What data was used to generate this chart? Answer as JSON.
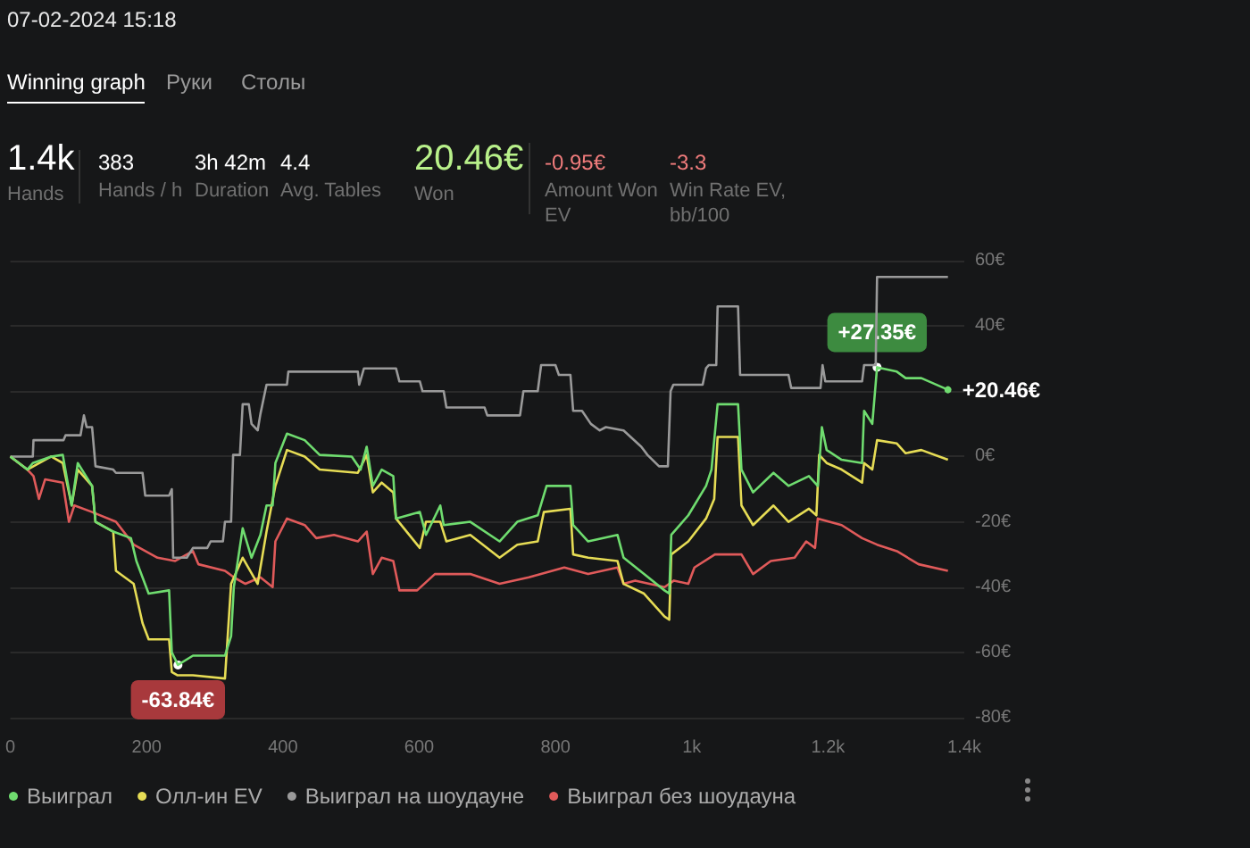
{
  "chart_data": {
    "type": "line",
    "annotations": [
      "07-02-2024 15:18",
      "Winning graph",
      "Руки",
      "Столы",
      "1.4k",
      "Hands",
      "383",
      "Hands / h",
      "3h 42m",
      "Duration",
      "4.4",
      "Avg. Tables",
      "20.46€",
      "Won",
      "-0.95€",
      "Amount Won EV",
      "-3.3",
      "Win Rate EV, bb/100",
      {
        "text": "+27.35€",
        "x": 1272,
        "y": 27.35
      },
      {
        "text": "-63.84€",
        "x": 246,
        "y": -63.84
      }
    ],
    "series": [
      {
        "name": "Выиграл",
        "color": "#6fdc6f",
        "x": [
          0,
          25,
          33,
          60,
          77,
          90,
          99,
          120,
          125,
          151,
          177,
          185,
          203,
          233,
          237,
          246,
          268,
          315,
          324,
          328,
          341,
          354,
          367,
          376,
          385,
          389,
          406,
          432,
          454,
          501,
          514,
          523,
          532,
          545,
          562,
          566,
          601,
          610,
          631,
          636,
          675,
          718,
          744,
          774,
          787,
          822,
          826,
          848,
          891,
          900,
          930,
          960,
          967,
          970,
          995,
          1021,
          1029,
          1038,
          1068,
          1073,
          1090,
          1120,
          1142,
          1172,
          1185,
          1191,
          1198,
          1220,
          1250,
          1253,
          1265,
          1272,
          1301,
          1314,
          1337,
          1376
        ],
        "values": [
          0,
          -4,
          -2,
          0,
          0.5,
          -15,
          -2,
          -9,
          -20,
          -23,
          -25,
          -32,
          -42,
          -41,
          -60,
          -63.84,
          -61,
          -61,
          -55,
          -40,
          -22,
          -31,
          -24,
          -15,
          -15,
          -2,
          7,
          5,
          0.5,
          0,
          -4,
          3,
          -9,
          -4,
          -6,
          -19,
          -17,
          -24,
          -15,
          -21,
          -20,
          -26,
          -20,
          -18,
          -9,
          -9,
          -21,
          -26,
          -24,
          -31,
          -36,
          -41,
          -42,
          -24,
          -18,
          -9,
          -4,
          16,
          16,
          -4,
          -11,
          -5,
          -9,
          -6,
          -9,
          9,
          2,
          -1,
          -2,
          14,
          10,
          27.35,
          26,
          24,
          24,
          20.46
        ],
        "value_labels": [
          null,
          null,
          null,
          null,
          null,
          null,
          null,
          null,
          null,
          null,
          null,
          null,
          null,
          null,
          null,
          null,
          null,
          null,
          null,
          null,
          null,
          null,
          null,
          null,
          null,
          null,
          null,
          null,
          null,
          null,
          null,
          null,
          null,
          null,
          null,
          null,
          null,
          null,
          null,
          null,
          null,
          null,
          null,
          null,
          null,
          null,
          null,
          null,
          null,
          null,
          null,
          null,
          null,
          null,
          null,
          null,
          null,
          null,
          null,
          null,
          null,
          null,
          null,
          null,
          null,
          null,
          null,
          null,
          null,
          null,
          null,
          null,
          null,
          null,
          null,
          "+20.46€"
        ]
      },
      {
        "name": "Олл-ин EV",
        "color": "#e6dc55",
        "x": [
          0,
          25,
          60,
          77,
          90,
          99,
          120,
          125,
          151,
          155,
          181,
          194,
          203,
          233,
          237,
          245,
          268,
          315,
          324,
          341,
          363,
          376,
          389,
          406,
          432,
          454,
          510,
          523,
          532,
          545,
          562,
          566,
          601,
          610,
          631,
          640,
          675,
          718,
          744,
          774,
          783,
          822,
          826,
          848,
          891,
          900,
          930,
          960,
          967,
          970,
          995,
          1021,
          1033,
          1038,
          1068,
          1073,
          1090,
          1120,
          1142,
          1172,
          1183,
          1187,
          1198,
          1220,
          1250,
          1253,
          1265,
          1272,
          1301,
          1314,
          1337,
          1376
        ],
        "values": [
          0,
          -4,
          0,
          -2,
          -15,
          -4,
          -9,
          -20,
          -23,
          -35,
          -39,
          -51,
          -56,
          -56,
          -66,
          -67,
          -67,
          -68,
          -39,
          -31,
          -39,
          -23,
          -9,
          2,
          0,
          -4,
          -5,
          0.5,
          -11,
          -8,
          -11,
          -19,
          -28,
          -20,
          -20,
          -26,
          -24,
          -31,
          -27,
          -26,
          -17,
          -16,
          -30,
          -31,
          -32,
          -39,
          -42,
          -49,
          -50,
          -30,
          -26,
          -19,
          -13,
          6,
          6,
          -15,
          -21,
          -15,
          -20,
          -16,
          -18,
          0.5,
          -2,
          -4,
          -8,
          -2,
          -4,
          5,
          4,
          1,
          2,
          -1
        ]
      },
      {
        "name": "Выиграл на шоудауне",
        "color": "#9a9a9a",
        "x": [
          0,
          33,
          34,
          78,
          81,
          103,
          108,
          112,
          120,
          125,
          151,
          155,
          194,
          198,
          233,
          237,
          239,
          259,
          268,
          289,
          294,
          312,
          315,
          324,
          327,
          337,
          341,
          350,
          354,
          363,
          367,
          376,
          406,
          408,
          510,
          512,
          519,
          566,
          571,
          601,
          605,
          636,
          640,
          696,
          700,
          705,
          748,
          753,
          774,
          779,
          800,
          805,
          822,
          826,
          839,
          852,
          865,
          874,
          900,
          926,
          935,
          952,
          965,
          969,
          973,
          1016,
          1021,
          1025,
          1036,
          1038,
          1068,
          1071,
          1142,
          1146,
          1189,
          1192,
          1196,
          1250,
          1253,
          1270,
          1272,
          1376
        ],
        "values": [
          0,
          0,
          5,
          5,
          6.5,
          6.5,
          12.6,
          9,
          9,
          -3,
          -4,
          -5,
          -5,
          -12,
          -12,
          -10,
          -31,
          -31,
          -28,
          -28,
          -26,
          -26,
          -20,
          -20,
          0.5,
          0.5,
          16,
          16,
          10,
          8,
          13,
          22,
          22,
          26,
          26,
          22,
          27,
          27,
          23,
          23,
          20,
          20,
          15,
          15,
          12.6,
          12.6,
          12.6,
          20,
          20,
          28,
          28,
          25,
          25,
          14,
          14,
          10,
          8,
          9,
          8,
          3,
          0.5,
          -3,
          -3,
          20,
          22,
          22,
          27,
          28,
          28,
          46,
          46,
          25,
          25,
          21,
          21,
          28,
          23,
          23,
          28,
          28,
          55,
          55
        ]
      },
      {
        "name": "Выиграл без шоудауна",
        "color": "#e05a5a",
        "x": [
          0,
          25,
          34,
          42,
          51,
          77,
          86,
          94,
          120,
          155,
          181,
          216,
          242,
          268,
          276,
          315,
          328,
          345,
          367,
          385,
          389,
          406,
          432,
          449,
          475,
          510,
          523,
          532,
          545,
          562,
          571,
          597,
          623,
          675,
          718,
          761,
          813,
          848,
          891,
          900,
          917,
          960,
          974,
          995,
          1004,
          1034,
          1073,
          1090,
          1116,
          1151,
          1168,
          1181,
          1185,
          1220,
          1250,
          1272,
          1301,
          1333,
          1376
        ],
        "values": [
          0,
          -4,
          -6,
          -13,
          -7,
          -8,
          -20,
          -15,
          -17,
          -20,
          -27,
          -31,
          -32,
          -29,
          -33,
          -35,
          -37,
          -39,
          -37,
          -40,
          -26,
          -19,
          -21,
          -25,
          -24,
          -26,
          -23,
          -36,
          -31,
          -32,
          -41,
          -41,
          -36,
          -36,
          -39,
          -37,
          -34,
          -36,
          -34,
          -39,
          -38,
          -40,
          -38,
          -39,
          -34,
          -30,
          -30,
          -36,
          -32,
          -31,
          -26,
          -28,
          -19,
          -21,
          -25,
          -27,
          -29,
          -33,
          -35
        ]
      }
    ],
    "xlim": [
      0,
      1400
    ],
    "xticks": [
      0,
      200,
      400,
      600,
      800,
      {
        "value": 1000,
        "label": "1k"
      },
      {
        "value": 1200,
        "label": "1.2k"
      },
      {
        "value": 1400,
        "label": "1.4k"
      }
    ],
    "ylim": [
      -80,
      60
    ],
    "yticks": [
      {
        "value": -80,
        "label": "-80€"
      },
      {
        "value": -60,
        "label": "-60€"
      },
      {
        "value": -40,
        "label": "-40€"
      },
      {
        "value": -20,
        "label": "-20€"
      },
      {
        "value": 0,
        "label": "0€"
      },
      {
        "value": 20,
        "label": null
      },
      {
        "value": 40,
        "label": "40€"
      },
      {
        "value": 60,
        "label": "60€"
      }
    ],
    "grid": "y",
    "legend": "bottom",
    "marker": "none",
    "line_style": "solid"
  }
}
